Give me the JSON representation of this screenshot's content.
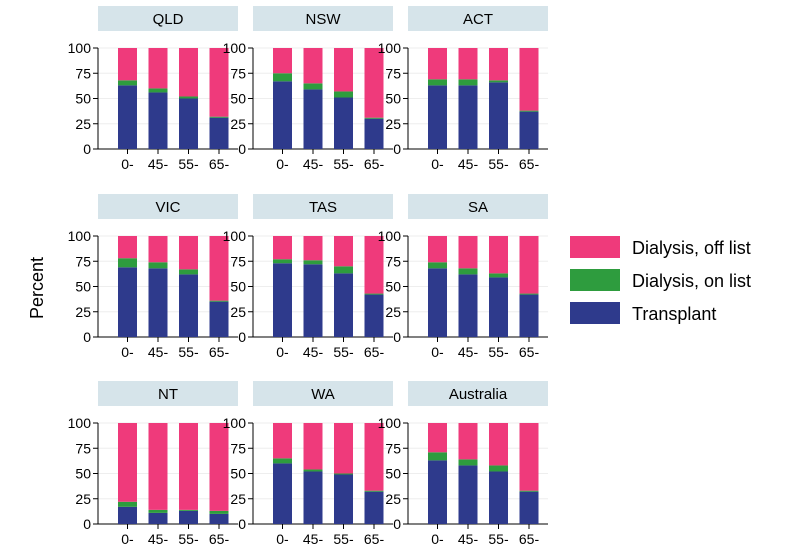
{
  "chart_data": {
    "type": "bar",
    "stacked": true,
    "ylabel": "Percent",
    "ylim": [
      0,
      100
    ],
    "yticks": [
      0,
      25,
      50,
      75,
      100
    ],
    "categories": [
      "0-",
      "45-",
      "55-",
      "65-"
    ],
    "colors": {
      "Transplant": "#2e3a8c",
      "Dialysis, on list": "#2e9c3e",
      "Dialysis, off list": "#ef3a7b",
      "strip": "#d6e4ea"
    },
    "legend": {
      "placement": "right",
      "entries": [
        "Dialysis, off list",
        "Dialysis, on list",
        "Transplant"
      ]
    },
    "panels": [
      {
        "title": "QLD",
        "series": [
          {
            "name": "Transplant",
            "values": [
              63,
              56,
              50,
              31
            ]
          },
          {
            "name": "Dialysis, on list",
            "values": [
              5,
              4,
              2,
              1
            ]
          },
          {
            "name": "Dialysis, off list",
            "values": [
              32,
              40,
              48,
              68
            ]
          }
        ]
      },
      {
        "title": "NSW",
        "series": [
          {
            "name": "Transplant",
            "values": [
              67,
              59,
              51,
              30
            ]
          },
          {
            "name": "Dialysis, on list",
            "values": [
              8,
              6,
              6,
              1
            ]
          },
          {
            "name": "Dialysis, off list",
            "values": [
              25,
              35,
              43,
              69
            ]
          }
        ]
      },
      {
        "title": "ACT",
        "series": [
          {
            "name": "Transplant",
            "values": [
              63,
              63,
              66,
              37
            ]
          },
          {
            "name": "Dialysis, on list",
            "values": [
              6,
              6,
              2,
              1
            ]
          },
          {
            "name": "Dialysis, off list",
            "values": [
              31,
              31,
              32,
              62
            ]
          }
        ]
      },
      {
        "title": "VIC",
        "series": [
          {
            "name": "Transplant",
            "values": [
              69,
              68,
              62,
              35
            ]
          },
          {
            "name": "Dialysis, on list",
            "values": [
              9,
              6,
              5,
              1
            ]
          },
          {
            "name": "Dialysis, off list",
            "values": [
              22,
              26,
              33,
              64
            ]
          }
        ]
      },
      {
        "title": "TAS",
        "series": [
          {
            "name": "Transplant",
            "values": [
              73,
              72,
              63,
              42
            ]
          },
          {
            "name": "Dialysis, on list",
            "values": [
              4,
              4,
              7,
              1
            ]
          },
          {
            "name": "Dialysis, off list",
            "values": [
              23,
              24,
              30,
              57
            ]
          }
        ]
      },
      {
        "title": "SA",
        "series": [
          {
            "name": "Transplant",
            "values": [
              68,
              62,
              59,
              42
            ]
          },
          {
            "name": "Dialysis, on list",
            "values": [
              6,
              6,
              4,
              1
            ]
          },
          {
            "name": "Dialysis, off list",
            "values": [
              26,
              32,
              37,
              57
            ]
          }
        ]
      },
      {
        "title": "NT",
        "series": [
          {
            "name": "Transplant",
            "values": [
              17,
              11,
              13,
              10
            ]
          },
          {
            "name": "Dialysis, on list",
            "values": [
              5,
              3,
              1,
              3
            ]
          },
          {
            "name": "Dialysis, off list",
            "values": [
              78,
              86,
              86,
              87
            ]
          }
        ]
      },
      {
        "title": "WA",
        "series": [
          {
            "name": "Transplant",
            "values": [
              60,
              52,
              49,
              32
            ]
          },
          {
            "name": "Dialysis, on list",
            "values": [
              5,
              2,
              1,
              1
            ]
          },
          {
            "name": "Dialysis, off list",
            "values": [
              35,
              46,
              50,
              67
            ]
          }
        ]
      },
      {
        "title": "Australia",
        "series": [
          {
            "name": "Transplant",
            "values": [
              63,
              58,
              52,
              32
            ]
          },
          {
            "name": "Dialysis, on list",
            "values": [
              8,
              6,
              6,
              1
            ]
          },
          {
            "name": "Dialysis, off list",
            "values": [
              29,
              36,
              42,
              67
            ]
          }
        ]
      }
    ]
  }
}
